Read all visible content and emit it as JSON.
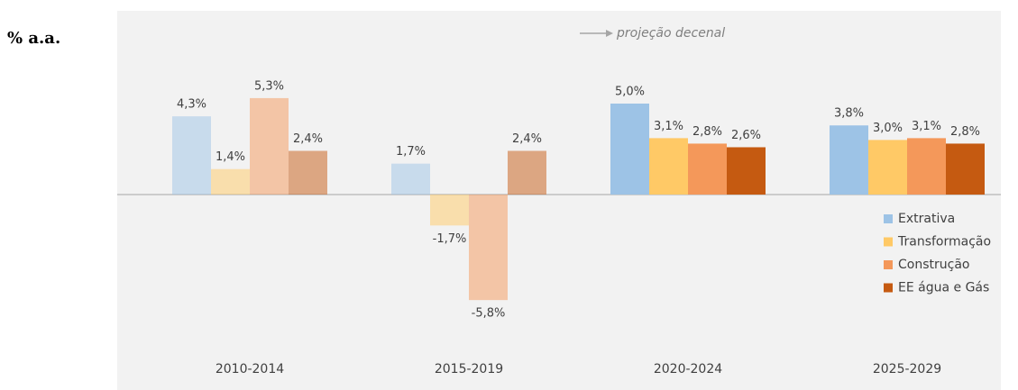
{
  "chart_data": {
    "type": "bar",
    "unit_label": "% a.a.",
    "annotation": "projeção decenal",
    "categories": [
      "2010-2014",
      "2015-2019",
      "2020-2024",
      "2025-2029"
    ],
    "opacity": [
      0.5,
      0.5,
      1,
      1
    ],
    "series": [
      {
        "name": "Extrativa",
        "color": "#9dc3e6",
        "values": [
          4.3,
          1.7,
          5.0,
          3.8
        ],
        "value_labels": [
          "4,3%",
          "1,7%",
          "5,0%",
          "3,8%"
        ]
      },
      {
        "name": "Transformação",
        "color": "#ffc966",
        "values": [
          1.4,
          -1.7,
          3.1,
          3.0
        ],
        "value_labels": [
          "1,4%",
          "-1,7%",
          "3,1%",
          "3,0%"
        ]
      },
      {
        "name": "Construção",
        "color": "#f4985a",
        "values": [
          5.3,
          -5.8,
          2.8,
          3.1
        ],
        "value_labels": [
          "5,3%",
          "-5,8%",
          "2,8%",
          "3,1%"
        ]
      },
      {
        "name": "EE água e Gás",
        "color": "#c55a11",
        "values": [
          2.4,
          2.4,
          2.6,
          2.8
        ],
        "value_labels": [
          "2,4%",
          "2,4%",
          "2,6%",
          "2,8%"
        ]
      }
    ],
    "legend": "right"
  }
}
